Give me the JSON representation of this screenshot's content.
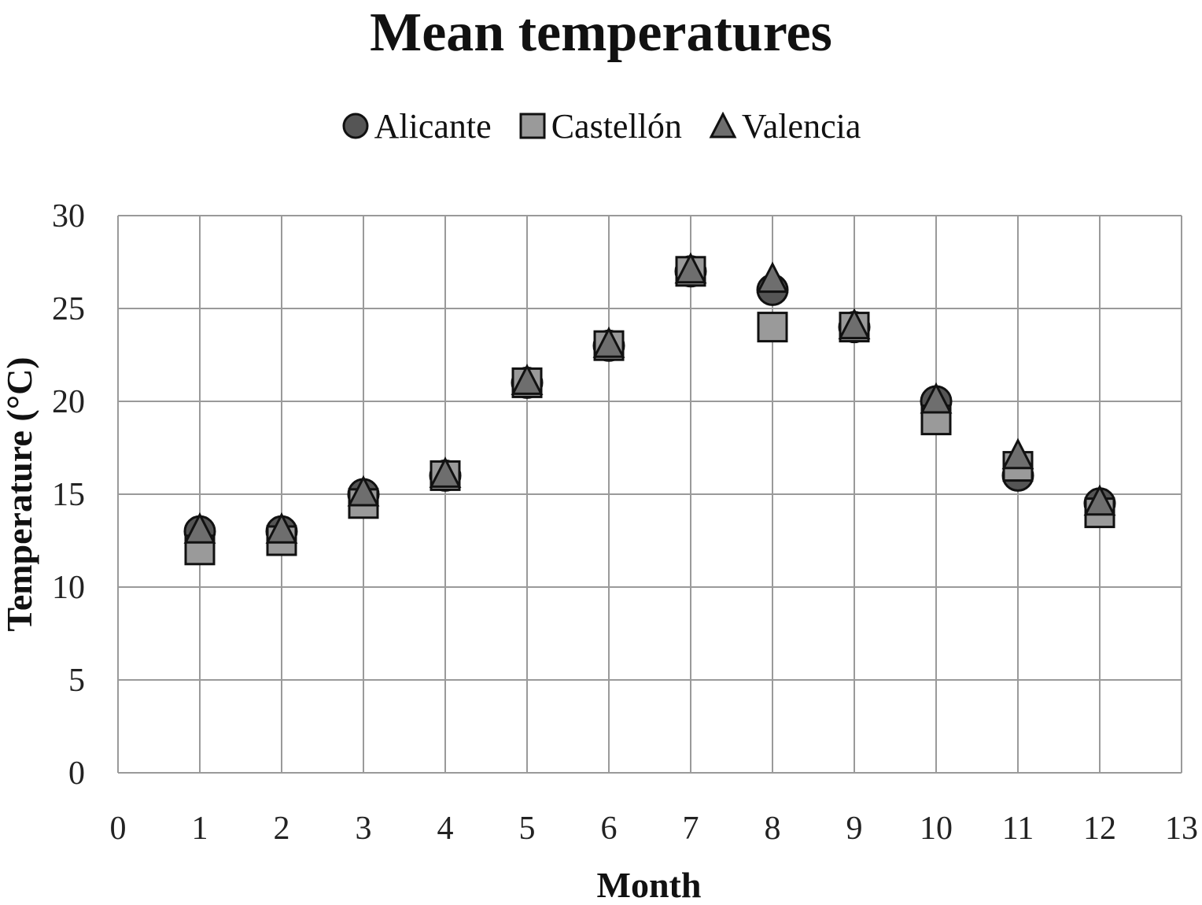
{
  "chart_data": {
    "type": "scatter",
    "title": "Mean temperatures",
    "xlabel": "Month",
    "ylabel": "Temperature (°C)",
    "xlim": [
      0,
      13
    ],
    "ylim": [
      0,
      30
    ],
    "xticks": [
      0,
      1,
      2,
      3,
      4,
      5,
      6,
      7,
      8,
      9,
      10,
      11,
      12,
      13
    ],
    "yticks": [
      0,
      5,
      10,
      15,
      20,
      25,
      30
    ],
    "grid": true,
    "legend_position": "top",
    "x": [
      1,
      2,
      3,
      4,
      5,
      6,
      7,
      8,
      9,
      10,
      11,
      12
    ],
    "series": [
      {
        "name": "Alicante",
        "marker": "circle",
        "color": "#555555",
        "values": [
          13,
          13,
          15,
          16,
          21,
          23,
          27,
          26,
          24,
          20,
          16,
          14.5
        ]
      },
      {
        "name": "Castellón",
        "marker": "square",
        "color": "#9a9a9a",
        "values": [
          12,
          12.5,
          14.5,
          16,
          21,
          23,
          27,
          24,
          24,
          19,
          16.5,
          14
        ]
      },
      {
        "name": "Valencia",
        "marker": "triangle",
        "color": "#6e6e6e",
        "values": [
          13,
          13,
          15,
          16,
          21,
          23,
          27,
          26.5,
          24,
          20,
          17,
          14.5
        ]
      }
    ]
  }
}
